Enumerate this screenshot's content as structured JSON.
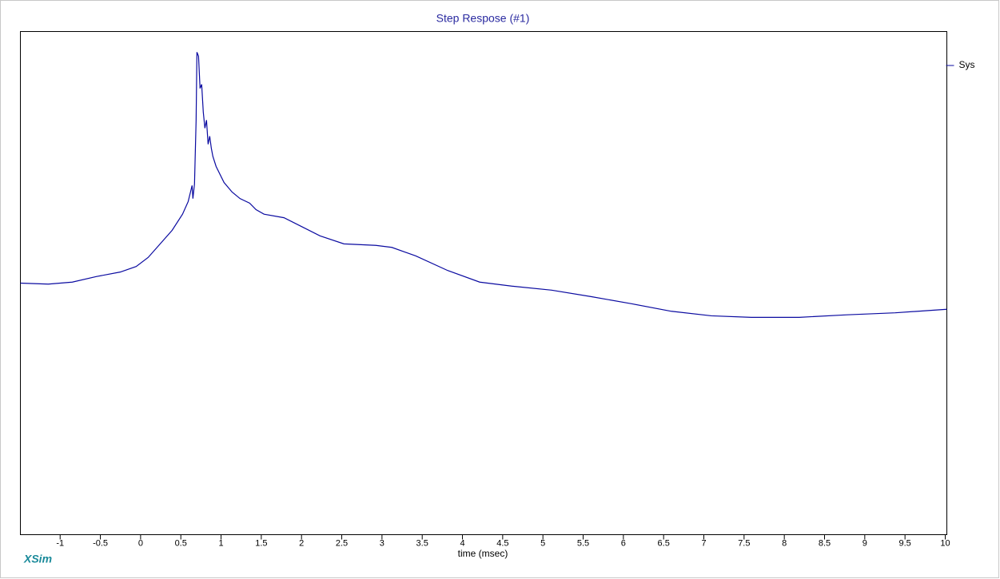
{
  "chart_data": {
    "type": "line",
    "title": "Step Respose (#1)",
    "xlabel": "time (msec)",
    "watermark": "XSim",
    "legend": "right",
    "xlim": [
      -1.494,
      10.02
    ],
    "ylim": [
      0,
      1
    ],
    "xticks": [
      -1,
      -0.5,
      0,
      0.5,
      1,
      1.5,
      2,
      2.5,
      3,
      3.5,
      4,
      4.5,
      5,
      5.5,
      6,
      6.5,
      7,
      7.5,
      8,
      8.5,
      9,
      9.5,
      10
    ],
    "series": [
      {
        "name": "Sys",
        "color": "#0a0aa0",
        "x": [
          -1.494,
          -1.147,
          -0.849,
          -0.551,
          -0.253,
          -0.055,
          0.094,
          0.243,
          0.392,
          0.521,
          0.591,
          0.62,
          0.64,
          0.65,
          0.67,
          0.69,
          0.7,
          0.72,
          0.739,
          0.759,
          0.779,
          0.799,
          0.819,
          0.839,
          0.859,
          0.879,
          0.898,
          0.938,
          1.037,
          1.137,
          1.236,
          1.355,
          1.435,
          1.534,
          1.782,
          2.03,
          2.229,
          2.527,
          2.924,
          3.122,
          3.42,
          3.817,
          4.214,
          4.612,
          5.108,
          5.604,
          6.101,
          6.597,
          7.093,
          7.59,
          8.185,
          8.781,
          9.377,
          10.02
        ],
        "values": [
          0.5,
          0.498,
          0.502,
          0.513,
          0.522,
          0.533,
          0.551,
          0.578,
          0.605,
          0.637,
          0.662,
          0.681,
          0.694,
          0.668,
          0.697,
          0.824,
          0.959,
          0.951,
          0.887,
          0.895,
          0.84,
          0.808,
          0.824,
          0.776,
          0.792,
          0.768,
          0.752,
          0.732,
          0.7,
          0.681,
          0.668,
          0.659,
          0.646,
          0.637,
          0.63,
          0.61,
          0.594,
          0.578,
          0.575,
          0.571,
          0.554,
          0.525,
          0.502,
          0.494,
          0.486,
          0.473,
          0.459,
          0.444,
          0.435,
          0.432,
          0.432,
          0.437,
          0.441,
          0.448
        ]
      }
    ]
  }
}
